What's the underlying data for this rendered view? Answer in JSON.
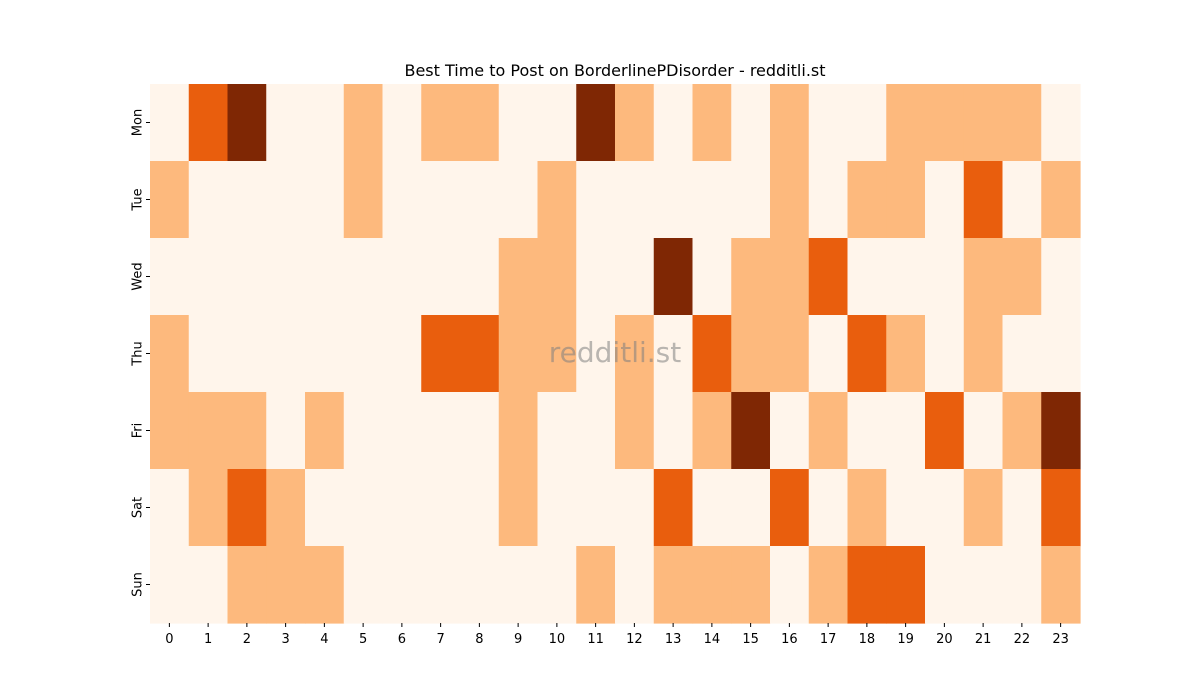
{
  "chart_data": {
    "type": "heatmap",
    "title": "Best Time to Post on BorderlinePDisorder - redditli.st",
    "watermark": "redditli.st",
    "xlabel": "",
    "ylabel": "",
    "x": [
      "0",
      "1",
      "2",
      "3",
      "4",
      "5",
      "6",
      "7",
      "8",
      "9",
      "10",
      "11",
      "12",
      "13",
      "14",
      "15",
      "16",
      "17",
      "18",
      "19",
      "20",
      "21",
      "22",
      "23"
    ],
    "y": [
      "Mon",
      "Tue",
      "Wed",
      "Thu",
      "Fri",
      "Sat",
      "Sun"
    ],
    "values": [
      [
        0,
        2,
        3,
        0,
        0,
        1,
        0,
        1,
        1,
        0,
        0,
        3,
        1,
        0,
        1,
        0,
        1,
        0,
        0,
        1,
        1,
        1,
        1,
        0
      ],
      [
        1,
        0,
        0,
        0,
        0,
        1,
        0,
        0,
        0,
        0,
        1,
        0,
        0,
        0,
        0,
        0,
        1,
        0,
        1,
        1,
        0,
        2,
        0,
        1
      ],
      [
        0,
        0,
        0,
        0,
        0,
        0,
        0,
        0,
        0,
        1,
        1,
        0,
        0,
        3,
        0,
        1,
        1,
        2,
        0,
        0,
        0,
        1,
        1,
        0
      ],
      [
        1,
        0,
        0,
        0,
        0,
        0,
        0,
        2,
        2,
        1,
        1,
        0,
        1,
        0,
        2,
        1,
        1,
        0,
        2,
        1,
        0,
        1,
        0,
        0
      ],
      [
        1,
        1,
        1,
        0,
        1,
        0,
        0,
        0,
        0,
        1,
        0,
        0,
        1,
        0,
        1,
        3,
        0,
        1,
        0,
        0,
        2,
        0,
        1,
        3
      ],
      [
        0,
        1,
        2,
        1,
        0,
        0,
        0,
        0,
        0,
        1,
        0,
        0,
        0,
        2,
        0,
        0,
        2,
        0,
        1,
        0,
        0,
        1,
        0,
        2
      ],
      [
        0,
        0,
        1,
        1,
        1,
        0,
        0,
        0,
        0,
        0,
        0,
        1,
        0,
        1,
        1,
        1,
        0,
        1,
        2,
        2,
        0,
        0,
        0,
        1
      ]
    ],
    "colormap": "Oranges",
    "level_colors": [
      "#fff5eb",
      "#fdb97d",
      "#e95e0d",
      "#7f2704"
    ],
    "grid": false,
    "colorbar": false
  }
}
